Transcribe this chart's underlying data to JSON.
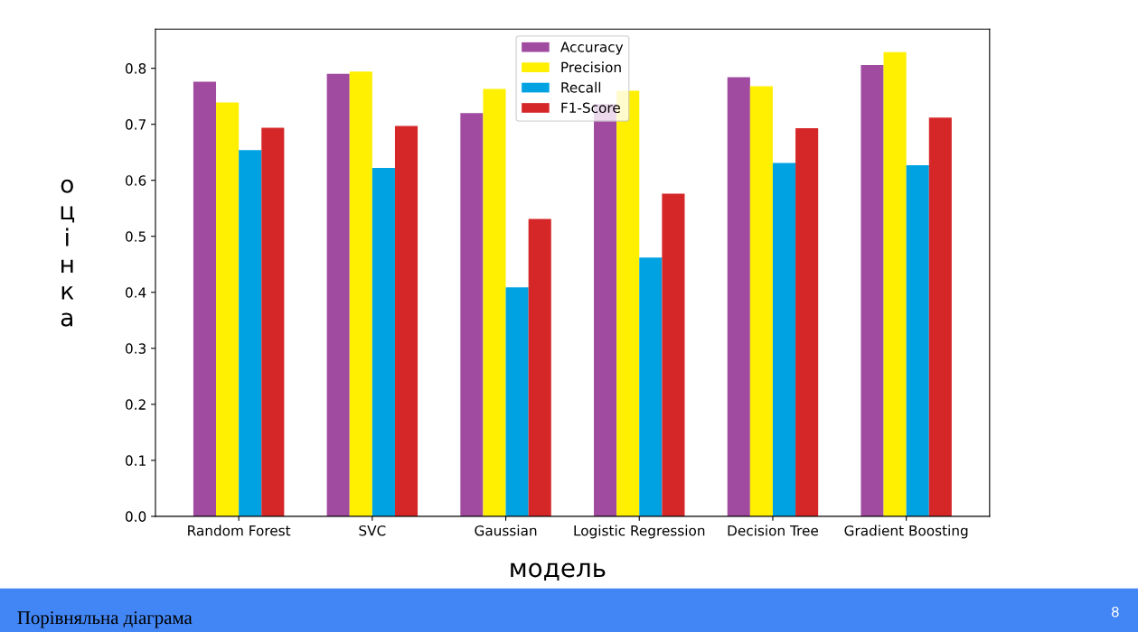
{
  "chart_data": {
    "type": "bar",
    "xlabel": "модель",
    "ylabel": "оцінка",
    "categories": [
      "Random Forest",
      "SVC",
      "Gaussian",
      "Logistic Regression",
      "Decision Tree",
      "Gradient Boosting"
    ],
    "series": [
      {
        "name": "Accuracy",
        "color": "#a04aa0",
        "values": [
          0.776,
          0.79,
          0.72,
          0.736,
          0.784,
          0.806
        ]
      },
      {
        "name": "Precision",
        "color": "#ffef00",
        "values": [
          0.739,
          0.794,
          0.763,
          0.76,
          0.768,
          0.829
        ]
      },
      {
        "name": "Recall",
        "color": "#00a2e2",
        "values": [
          0.654,
          0.622,
          0.409,
          0.462,
          0.631,
          0.627
        ]
      },
      {
        "name": "F1-Score",
        "color": "#d62728",
        "values": [
          0.694,
          0.697,
          0.531,
          0.576,
          0.693,
          0.712
        ]
      }
    ],
    "ylim": [
      0,
      0.87
    ],
    "yticks": [
      {
        "value": 0,
        "label": "0.0"
      },
      0.1,
      0.2,
      0.3,
      0.4,
      0.5,
      0.6,
      0.7,
      0.8
    ],
    "legend": "top",
    "grid": false,
    "annotations": [
      "Порівняльна діаграма",
      "8"
    ]
  }
}
